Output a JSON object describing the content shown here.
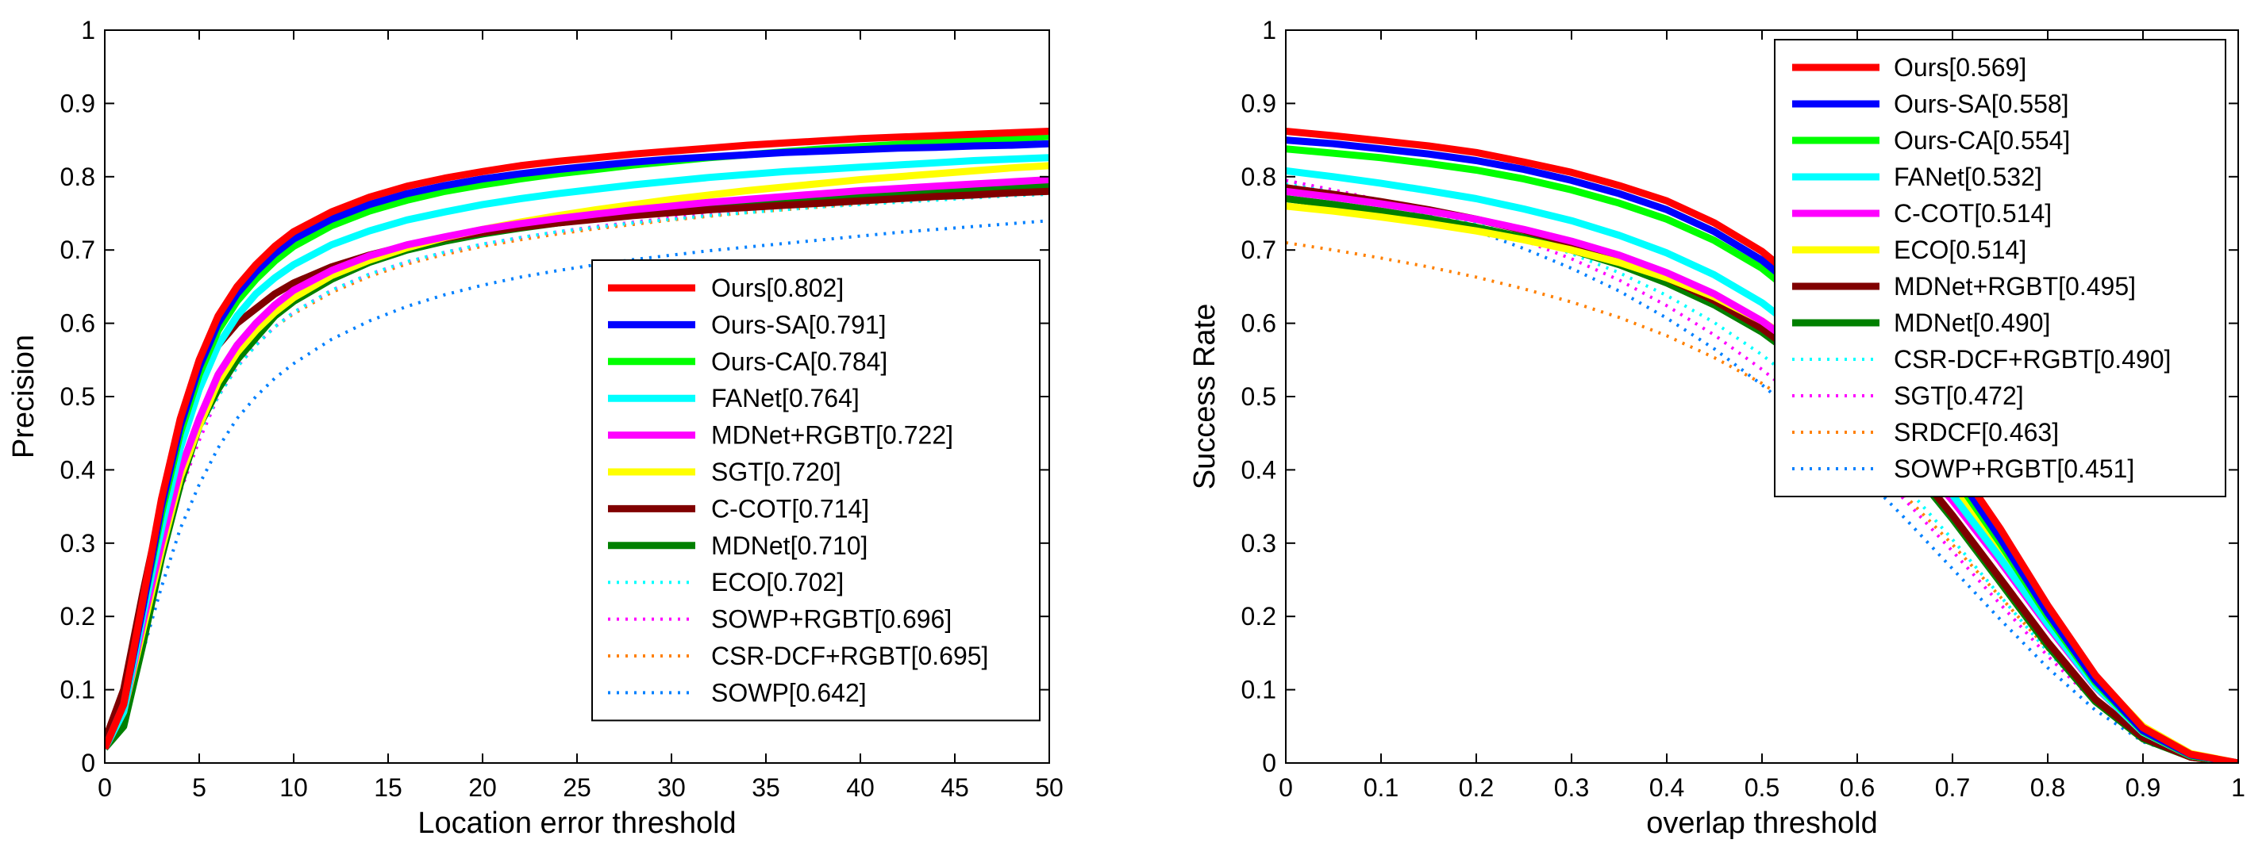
{
  "chart_data": [
    {
      "type": "line",
      "xlabel": "Location error threshold",
      "ylabel": "Precision",
      "xlim": [
        0,
        50
      ],
      "ylim": [
        0,
        1
      ],
      "x_ticks": [
        "0",
        "5",
        "10",
        "15",
        "20",
        "25",
        "30",
        "35",
        "40",
        "45",
        "50"
      ],
      "y_ticks": [
        "0",
        "0.1",
        "0.2",
        "0.3",
        "0.4",
        "0.5",
        "0.6",
        "0.7",
        "0.8",
        "0.9",
        "1"
      ],
      "legend_position": "bottom-right",
      "x": [
        0,
        1,
        2,
        3,
        4,
        5,
        6,
        7,
        8,
        9,
        10,
        12,
        14,
        16,
        18,
        20,
        22,
        24,
        26,
        28,
        30,
        32,
        34,
        36,
        38,
        40,
        42,
        44,
        46,
        48,
        50
      ],
      "series": [
        {
          "name": "Ours[0.802]",
          "color": "#ff0000",
          "style": "solid",
          "values": [
            0.02,
            0.08,
            0.22,
            0.36,
            0.47,
            0.55,
            0.61,
            0.65,
            0.68,
            0.705,
            0.725,
            0.752,
            0.772,
            0.787,
            0.798,
            0.807,
            0.815,
            0.821,
            0.826,
            0.831,
            0.835,
            0.839,
            0.843,
            0.846,
            0.849,
            0.852,
            0.854,
            0.856,
            0.858,
            0.86,
            0.862
          ]
        },
        {
          "name": "Ours-SA[0.791]",
          "color": "#0000ff",
          "style": "solid",
          "values": [
            0.02,
            0.08,
            0.21,
            0.35,
            0.46,
            0.54,
            0.6,
            0.64,
            0.67,
            0.695,
            0.715,
            0.742,
            0.762,
            0.777,
            0.788,
            0.797,
            0.804,
            0.81,
            0.815,
            0.82,
            0.824,
            0.827,
            0.83,
            0.833,
            0.835,
            0.837,
            0.839,
            0.84,
            0.842,
            0.843,
            0.845
          ]
        },
        {
          "name": "Ours-CA[0.784]",
          "color": "#00ff00",
          "style": "solid",
          "values": [
            0.02,
            0.08,
            0.21,
            0.34,
            0.45,
            0.53,
            0.59,
            0.63,
            0.66,
            0.685,
            0.705,
            0.733,
            0.753,
            0.768,
            0.78,
            0.789,
            0.797,
            0.804,
            0.81,
            0.816,
            0.821,
            0.826,
            0.83,
            0.834,
            0.838,
            0.841,
            0.844,
            0.847,
            0.85,
            0.852,
            0.855
          ]
        },
        {
          "name": "FANet[0.764]",
          "color": "#00ffff",
          "style": "solid",
          "values": [
            0.02,
            0.07,
            0.2,
            0.32,
            0.43,
            0.51,
            0.57,
            0.61,
            0.64,
            0.662,
            0.68,
            0.707,
            0.726,
            0.741,
            0.752,
            0.762,
            0.77,
            0.777,
            0.783,
            0.789,
            0.794,
            0.799,
            0.803,
            0.807,
            0.81,
            0.813,
            0.816,
            0.819,
            0.822,
            0.824,
            0.826
          ]
        },
        {
          "name": "MDNet+RGBT[0.722]",
          "color": "#ff00ff",
          "style": "solid",
          "values": [
            0.02,
            0.07,
            0.19,
            0.3,
            0.4,
            0.47,
            0.53,
            0.57,
            0.6,
            0.625,
            0.645,
            0.672,
            0.692,
            0.707,
            0.718,
            0.728,
            0.736,
            0.743,
            0.749,
            0.755,
            0.76,
            0.765,
            0.769,
            0.773,
            0.777,
            0.781,
            0.784,
            0.787,
            0.79,
            0.793,
            0.796
          ]
        },
        {
          "name": "SGT[0.720]",
          "color": "#ffff00",
          "style": "solid",
          "values": [
            0.02,
            0.07,
            0.18,
            0.29,
            0.39,
            0.46,
            0.52,
            0.56,
            0.59,
            0.615,
            0.635,
            0.665,
            0.686,
            0.703,
            0.717,
            0.728,
            0.738,
            0.747,
            0.755,
            0.762,
            0.769,
            0.775,
            0.781,
            0.786,
            0.791,
            0.796,
            0.8,
            0.804,
            0.808,
            0.812,
            0.815
          ]
        },
        {
          "name": "C-COT[0.714]",
          "color": "#800000",
          "style": "solid",
          "values": [
            0.03,
            0.1,
            0.23,
            0.35,
            0.45,
            0.52,
            0.57,
            0.6,
            0.62,
            0.64,
            0.655,
            0.677,
            0.693,
            0.706,
            0.716,
            0.724,
            0.731,
            0.737,
            0.742,
            0.747,
            0.751,
            0.755,
            0.758,
            0.761,
            0.764,
            0.767,
            0.77,
            0.773,
            0.775,
            0.778,
            0.78
          ]
        },
        {
          "name": "MDNet[0.710]",
          "color": "#008000",
          "style": "solid",
          "values": [
            0.02,
            0.05,
            0.16,
            0.28,
            0.38,
            0.46,
            0.51,
            0.55,
            0.58,
            0.61,
            0.63,
            0.66,
            0.683,
            0.7,
            0.712,
            0.722,
            0.73,
            0.737,
            0.743,
            0.749,
            0.754,
            0.758,
            0.762,
            0.766,
            0.77,
            0.773,
            0.776,
            0.779,
            0.782,
            0.785,
            0.787
          ]
        },
        {
          "name": "ECO[0.702]",
          "color": "#00ffff",
          "style": "dotted",
          "values": [
            0.02,
            0.07,
            0.18,
            0.29,
            0.38,
            0.45,
            0.5,
            0.54,
            0.57,
            0.595,
            0.615,
            0.645,
            0.667,
            0.684,
            0.697,
            0.708,
            0.717,
            0.725,
            0.731,
            0.737,
            0.742,
            0.747,
            0.751,
            0.755,
            0.759,
            0.762,
            0.765,
            0.768,
            0.771,
            0.774,
            0.776
          ]
        },
        {
          "name": "SOWP+RGBT[0.696]",
          "color": "#ff00ff",
          "style": "dotted",
          "values": [
            0.02,
            0.07,
            0.17,
            0.28,
            0.37,
            0.44,
            0.5,
            0.54,
            0.57,
            0.595,
            0.615,
            0.645,
            0.667,
            0.684,
            0.697,
            0.708,
            0.717,
            0.725,
            0.732,
            0.738,
            0.744,
            0.749,
            0.754,
            0.758,
            0.762,
            0.766,
            0.77,
            0.773,
            0.776,
            0.779,
            0.782
          ]
        },
        {
          "name": "CSR-DCF+RGBT[0.695]",
          "color": "#ff8000",
          "style": "dotted",
          "values": [
            0.02,
            0.07,
            0.18,
            0.29,
            0.38,
            0.45,
            0.5,
            0.54,
            0.57,
            0.595,
            0.613,
            0.642,
            0.664,
            0.681,
            0.694,
            0.705,
            0.714,
            0.722,
            0.729,
            0.735,
            0.741,
            0.746,
            0.751,
            0.755,
            0.759,
            0.763,
            0.767,
            0.77,
            0.773,
            0.776,
            0.779
          ]
        },
        {
          "name": "SOWP[0.642]",
          "color": "#0080ff",
          "style": "dotted",
          "values": [
            0.02,
            0.06,
            0.15,
            0.24,
            0.32,
            0.38,
            0.43,
            0.47,
            0.5,
            0.525,
            0.545,
            0.578,
            0.603,
            0.623,
            0.639,
            0.652,
            0.663,
            0.672,
            0.68,
            0.687,
            0.693,
            0.699,
            0.704,
            0.709,
            0.714,
            0.719,
            0.724,
            0.728,
            0.732,
            0.736,
            0.74
          ]
        }
      ]
    },
    {
      "type": "line",
      "xlabel": "overlap threshold",
      "ylabel": "Success Rate",
      "xlim": [
        0,
        1
      ],
      "ylim": [
        0,
        1
      ],
      "x_ticks": [
        "0",
        "0.1",
        "0.2",
        "0.3",
        "0.4",
        "0.5",
        "0.6",
        "0.7",
        "0.8",
        "0.9",
        "1"
      ],
      "y_ticks": [
        "0",
        "0.1",
        "0.2",
        "0.3",
        "0.4",
        "0.5",
        "0.6",
        "0.7",
        "0.8",
        "0.9",
        "1"
      ],
      "legend_position": "top-right",
      "x": [
        0,
        0.05,
        0.1,
        0.15,
        0.2,
        0.25,
        0.3,
        0.35,
        0.4,
        0.45,
        0.5,
        0.55,
        0.6,
        0.65,
        0.7,
        0.75,
        0.8,
        0.85,
        0.9,
        0.95,
        1
      ],
      "series": [
        {
          "name": "Ours[0.569]",
          "color": "#ff0000",
          "style": "solid",
          "values": [
            0.862,
            0.856,
            0.849,
            0.842,
            0.833,
            0.82,
            0.806,
            0.788,
            0.767,
            0.737,
            0.698,
            0.645,
            0.58,
            0.505,
            0.415,
            0.32,
            0.215,
            0.12,
            0.048,
            0.012,
            0.0
          ]
        },
        {
          "name": "Ours-SA[0.558]",
          "color": "#0000ff",
          "style": "solid",
          "values": [
            0.85,
            0.845,
            0.838,
            0.831,
            0.822,
            0.81,
            0.795,
            0.777,
            0.755,
            0.725,
            0.686,
            0.633,
            0.568,
            0.492,
            0.402,
            0.307,
            0.205,
            0.113,
            0.044,
            0.011,
            0.0
          ]
        },
        {
          "name": "Ours-CA[0.554]",
          "color": "#00ff00",
          "style": "solid",
          "values": [
            0.838,
            0.832,
            0.826,
            0.818,
            0.809,
            0.797,
            0.782,
            0.764,
            0.742,
            0.713,
            0.675,
            0.623,
            0.558,
            0.483,
            0.394,
            0.3,
            0.2,
            0.11,
            0.043,
            0.01,
            0.0
          ]
        },
        {
          "name": "FANet[0.532]",
          "color": "#00ffff",
          "style": "solid",
          "values": [
            0.808,
            0.8,
            0.791,
            0.781,
            0.77,
            0.756,
            0.74,
            0.72,
            0.696,
            0.666,
            0.628,
            0.578,
            0.518,
            0.447,
            0.366,
            0.28,
            0.19,
            0.105,
            0.042,
            0.01,
            0.0
          ]
        },
        {
          "name": "C-COT[0.514]",
          "color": "#ff00ff",
          "style": "solid",
          "values": [
            0.78,
            0.772,
            0.763,
            0.753,
            0.742,
            0.728,
            0.712,
            0.693,
            0.669,
            0.64,
            0.603,
            0.556,
            0.5,
            0.434,
            0.358,
            0.275,
            0.187,
            0.104,
            0.042,
            0.01,
            0.0
          ]
        },
        {
          "name": "ECO[0.514]",
          "color": "#ffff00",
          "style": "solid",
          "values": [
            0.76,
            0.753,
            0.745,
            0.736,
            0.726,
            0.714,
            0.7,
            0.683,
            0.662,
            0.636,
            0.603,
            0.56,
            0.508,
            0.447,
            0.375,
            0.295,
            0.205,
            0.118,
            0.05,
            0.013,
            0.0
          ]
        },
        {
          "name": "MDNet+RGBT[0.495]",
          "color": "#800000",
          "style": "solid",
          "values": [
            0.785,
            0.776,
            0.766,
            0.755,
            0.742,
            0.727,
            0.709,
            0.688,
            0.662,
            0.631,
            0.593,
            0.545,
            0.487,
            0.418,
            0.338,
            0.252,
            0.165,
            0.087,
            0.035,
            0.008,
            0.0
          ]
        },
        {
          "name": "MDNet[0.490]",
          "color": "#008000",
          "style": "solid",
          "values": [
            0.77,
            0.762,
            0.753,
            0.743,
            0.731,
            0.717,
            0.7,
            0.68,
            0.655,
            0.625,
            0.588,
            0.54,
            0.482,
            0.413,
            0.333,
            0.247,
            0.16,
            0.084,
            0.033,
            0.008,
            0.0
          ]
        },
        {
          "name": "CSR-DCF+RGBT[0.490]",
          "color": "#00ffff",
          "style": "dotted",
          "values": [
            0.79,
            0.779,
            0.766,
            0.752,
            0.736,
            0.717,
            0.695,
            0.669,
            0.638,
            0.601,
            0.557,
            0.505,
            0.445,
            0.378,
            0.305,
            0.228,
            0.152,
            0.085,
            0.035,
            0.009,
            0.0
          ]
        },
        {
          "name": "SGT[0.472]",
          "color": "#ff00ff",
          "style": "dotted",
          "values": [
            0.795,
            0.782,
            0.768,
            0.752,
            0.734,
            0.713,
            0.688,
            0.659,
            0.624,
            0.584,
            0.537,
            0.484,
            0.424,
            0.359,
            0.289,
            0.217,
            0.146,
            0.082,
            0.033,
            0.008,
            0.0
          ]
        },
        {
          "name": "SRDCF[0.463]",
          "color": "#ff8000",
          "style": "dotted",
          "values": [
            0.71,
            0.7,
            0.689,
            0.677,
            0.663,
            0.647,
            0.629,
            0.608,
            0.583,
            0.553,
            0.518,
            0.475,
            0.424,
            0.365,
            0.298,
            0.227,
            0.155,
            0.088,
            0.036,
            0.009,
            0.0
          ]
        },
        {
          "name": "SOWP+RGBT[0.451]",
          "color": "#0080ff",
          "style": "dotted",
          "values": [
            0.795,
            0.781,
            0.765,
            0.747,
            0.726,
            0.702,
            0.675,
            0.644,
            0.607,
            0.565,
            0.516,
            0.461,
            0.4,
            0.334,
            0.265,
            0.196,
            0.13,
            0.072,
            0.029,
            0.007,
            0.0
          ]
        }
      ]
    }
  ]
}
